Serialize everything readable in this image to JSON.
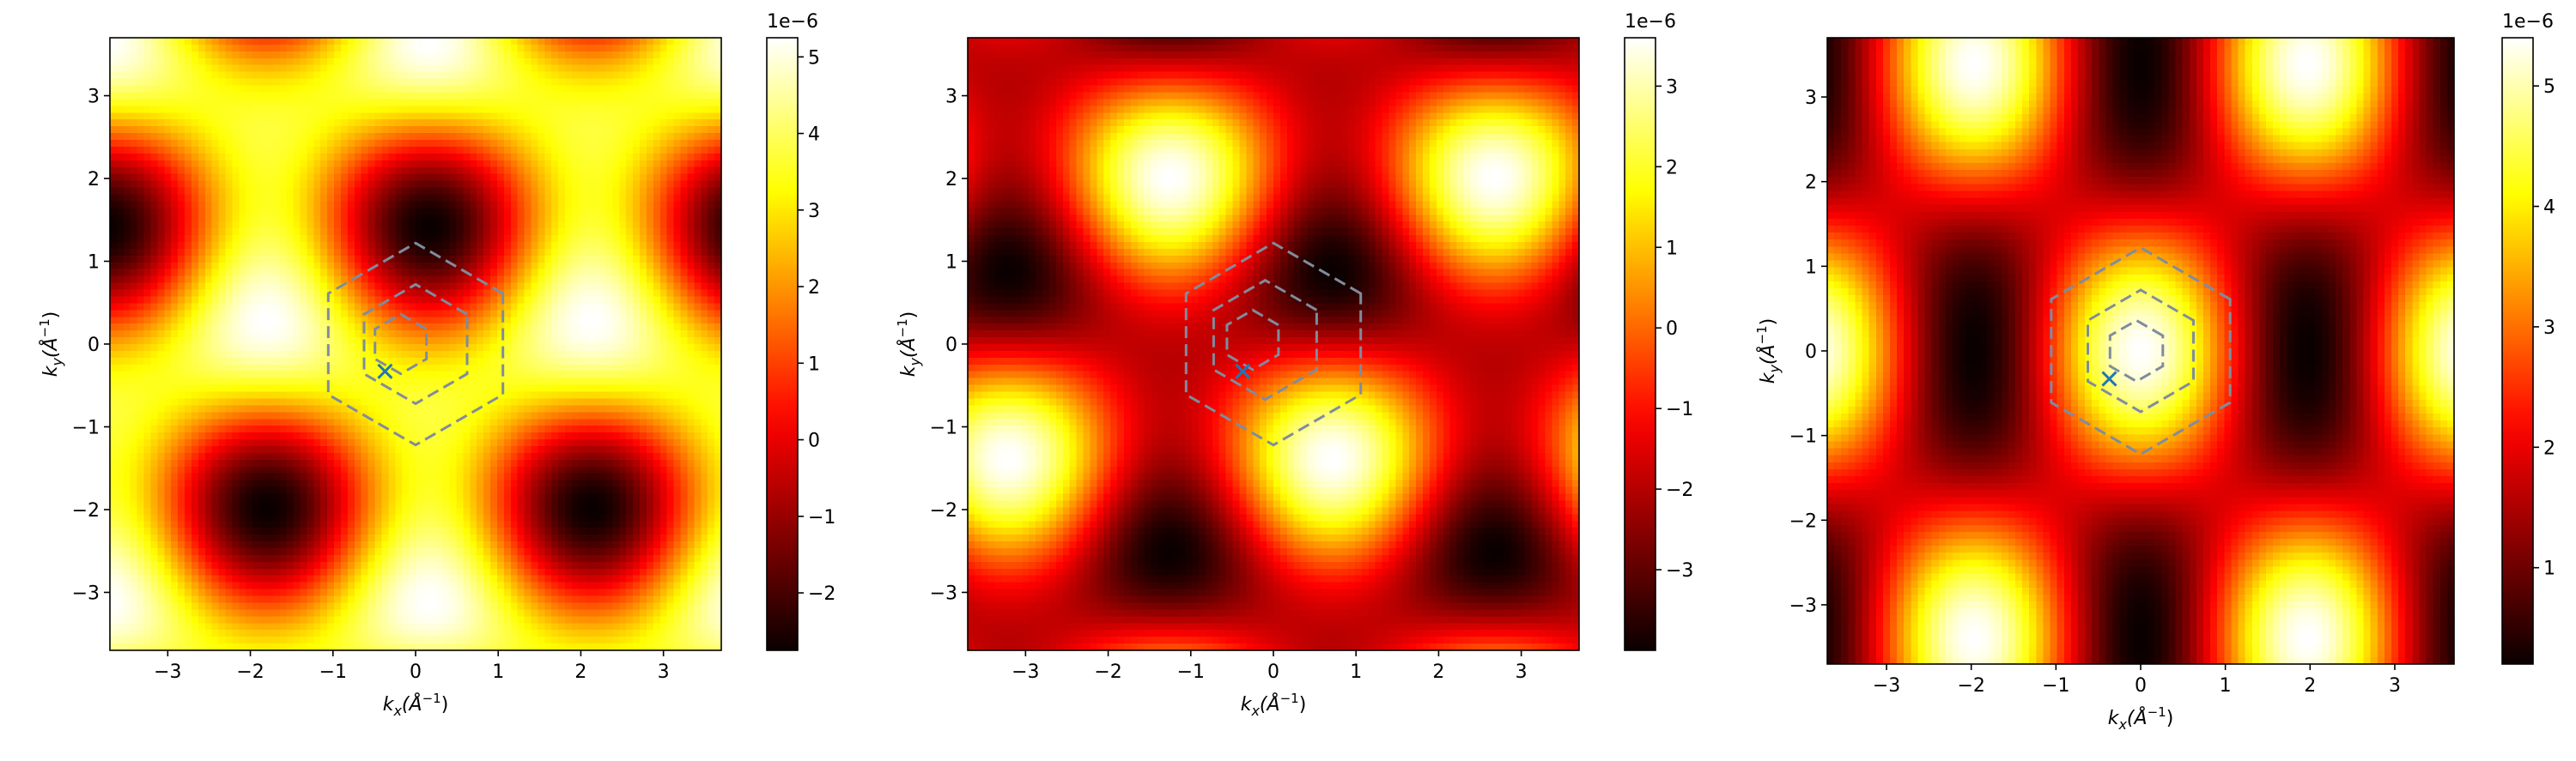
{
  "figure": {
    "background": "#ffffff",
    "colormap": "hot",
    "colormap_stops": [
      "#0a0000",
      "#ff0000",
      "#ffff00",
      "#ffffff"
    ]
  },
  "chart_data": [
    {
      "type": "heatmap",
      "title": "",
      "xlabel_main": "k",
      "xlabel_sub": "x",
      "xlabel_unit": "(Å",
      "ylabel_main": "k",
      "ylabel_sub": "y",
      "ylabel_unit": "(Å",
      "unit_sup": "−1",
      "unit_close": ")",
      "xlim": [
        -3.7,
        3.7
      ],
      "ylim": [
        -3.7,
        3.7
      ],
      "xticks": [
        -3,
        -2,
        -1,
        0,
        1,
        2,
        3
      ],
      "xtick_labels": [
        "−3",
        "−2",
        "−1",
        "0",
        "1",
        "2",
        "3"
      ],
      "yticks": [
        -3,
        -2,
        -1,
        0,
        1,
        2,
        3
      ],
      "ytick_labels": [
        "−3",
        "−2",
        "−1",
        "0",
        "1",
        "2",
        "3"
      ],
      "pattern": {
        "g1": [
          0,
          1.85
        ],
        "g2": [
          1.6,
          0.925
        ],
        "phase": [
          0.35,
          1.75,
          4.0
        ],
        "weight": [
          1,
          1,
          1
        ],
        "offset": 0
      },
      "hexagons": [
        {
          "R": 1.22,
          "cx": 0,
          "cy": 0
        },
        {
          "R": 0.72,
          "cx": 0,
          "cy": 0
        },
        {
          "R": 0.36,
          "cx": -0.18,
          "cy": 0
        }
      ],
      "hexagon_color": "#7f8c9e",
      "marker": {
        "x": -0.37,
        "y": -0.33,
        "symbol": "x",
        "color": "#1f77b4"
      },
      "colorbar": {
        "min": -2.75,
        "max": 5.25,
        "ticks": [
          -2,
          -1,
          0,
          1,
          2,
          3,
          4,
          5
        ],
        "tick_labels": [
          "−2",
          "−1",
          "0",
          "1",
          "2",
          "3",
          "4",
          "5"
        ],
        "offset_text": "1e−6"
      }
    },
    {
      "type": "heatmap",
      "title": "",
      "xlabel_main": "k",
      "xlabel_sub": "x",
      "xlabel_unit": "(Å",
      "ylabel_main": "k",
      "ylabel_sub": "y",
      "ylabel_unit": "(Å",
      "unit_sup": "−1",
      "unit_close": ")",
      "xlim": [
        -3.7,
        3.7
      ],
      "ylim": [
        -3.7,
        3.7
      ],
      "xticks": [
        -3,
        -2,
        -1,
        0,
        1,
        2,
        3
      ],
      "xtick_labels": [
        "−3",
        "−2",
        "−1",
        "0",
        "1",
        "2",
        "3"
      ],
      "yticks": [
        -3,
        -2,
        -1,
        0,
        1,
        2,
        3
      ],
      "ytick_labels": [
        "−3",
        "−2",
        "−1",
        "0",
        "1",
        "2",
        "3"
      ],
      "pattern": {
        "g1": [
          0,
          1.85
        ],
        "g2": [
          1.6,
          0.925
        ],
        "phase": [
          2.3,
          0.4,
          3.6
        ],
        "weight": [
          1,
          1,
          1
        ],
        "offset": 0
      },
      "hexagons": [
        {
          "R": 1.22,
          "cx": 0,
          "cy": 0
        },
        {
          "R": 0.72,
          "cx": -0.1,
          "cy": 0.05
        },
        {
          "R": 0.36,
          "cx": -0.25,
          "cy": 0.05
        }
      ],
      "hexagon_color": "#7f8c9e",
      "marker": {
        "x": -0.37,
        "y": -0.33,
        "symbol": "x",
        "color": "#1f77b4"
      },
      "colorbar": {
        "min": -4.0,
        "max": 3.6,
        "ticks": [
          -3,
          -2,
          -1,
          0,
          1,
          2,
          3
        ],
        "tick_labels": [
          "−3",
          "−2",
          "−1",
          "0",
          "1",
          "2",
          "3"
        ],
        "offset_text": "1e−6"
      }
    },
    {
      "type": "heatmap",
      "title": "",
      "xlabel_main": "k",
      "xlabel_sub": "x",
      "xlabel_unit": "(Å",
      "ylabel_main": "k",
      "ylabel_sub": "y",
      "ylabel_unit": "(Å",
      "unit_sup": "−1",
      "unit_close": ")",
      "xlim": [
        -3.7,
        3.7
      ],
      "ylim": [
        -3.7,
        3.7
      ],
      "xticks": [
        -3,
        -2,
        -1,
        0,
        1,
        2,
        3
      ],
      "xtick_labels": [
        "−3",
        "−2",
        "−1",
        "0",
        "1",
        "2",
        "3"
      ],
      "yticks": [
        -3,
        -2,
        -1,
        0,
        1,
        2,
        3
      ],
      "ytick_labels": [
        "−3",
        "−2",
        "−1",
        "0",
        "1",
        "2",
        "3"
      ],
      "pattern": {
        "g1": [
          0,
          1.85
        ],
        "g2": [
          1.6,
          0.925
        ],
        "phase": [
          0.0,
          0.0,
          0.0
        ],
        "weight": [
          0.35,
          1,
          1
        ],
        "offset": 0
      },
      "hexagons": [
        {
          "R": 1.22,
          "cx": 0,
          "cy": 0
        },
        {
          "R": 0.72,
          "cx": 0,
          "cy": 0
        },
        {
          "R": 0.36,
          "cx": -0.05,
          "cy": 0
        }
      ],
      "hexagon_color": "#7f8c9e",
      "marker": {
        "x": -0.37,
        "y": -0.33,
        "symbol": "x",
        "color": "#1f77b4"
      },
      "colorbar": {
        "min": 0.2,
        "max": 5.4,
        "ticks": [
          1,
          2,
          3,
          4,
          5
        ],
        "tick_labels": [
          "1",
          "2",
          "3",
          "4",
          "5"
        ],
        "offset_text": "1e−6"
      }
    }
  ]
}
